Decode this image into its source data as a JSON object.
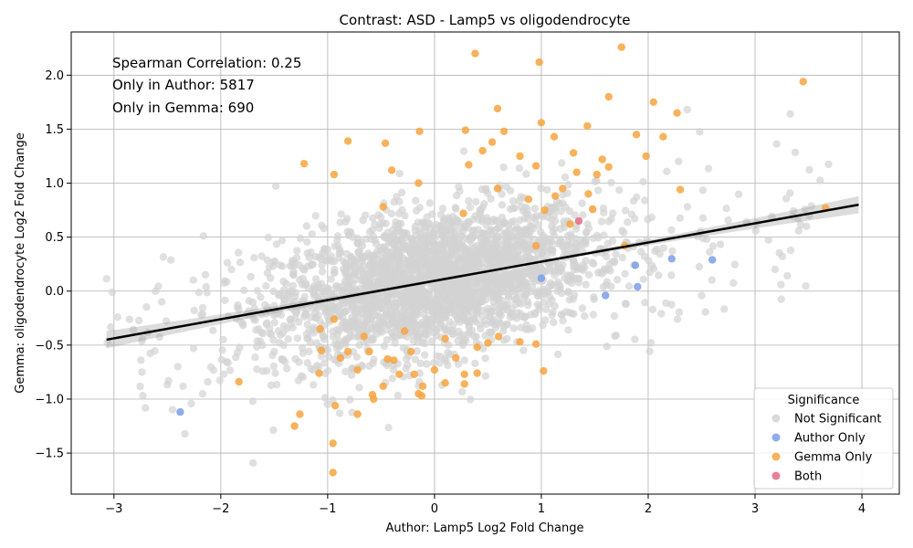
{
  "chart_data": {
    "type": "scatter",
    "title": "Contrast: ASD - Lamp5 vs oligodendrocyte",
    "xlabel": "Author: Lamp5 Log2 Fold Change",
    "ylabel": "Gemma: oligodendrocyte Log2 Fold Change",
    "xlim": [
      -3.4,
      4.35
    ],
    "ylim": [
      -1.88,
      2.4
    ],
    "x_ticks": [
      -3,
      -2,
      -1,
      0,
      1,
      2,
      3,
      4
    ],
    "x_tick_labels": [
      "−3",
      "−2",
      "−1",
      "0",
      "1",
      "2",
      "3",
      "4"
    ],
    "y_ticks": [
      -1.5,
      -1.0,
      -0.5,
      0.0,
      0.5,
      1.0,
      1.5,
      2.0
    ],
    "y_tick_labels": [
      "−1.5",
      "−1.0",
      "−0.5",
      "0.0",
      "0.5",
      "1.0",
      "1.5",
      "2.0"
    ],
    "grid": true,
    "annotations": [
      "Spearman Correlation: 0.25",
      "Only in Author: 5817",
      "Only in Gemma: 690"
    ],
    "legend": {
      "title": "Significance",
      "placement": "lower-right",
      "entries": [
        {
          "label": "Not Significant",
          "color": "#d3d3d3"
        },
        {
          "label": "Author Only",
          "color": "#7b9de8"
        },
        {
          "label": "Gemma Only",
          "color": "#f7a440"
        },
        {
          "label": "Both",
          "color": "#e36a82"
        }
      ]
    },
    "regression": {
      "x": [
        -3.07,
        3.97
      ],
      "y": [
        -0.45,
        0.8
      ],
      "color": "#000000"
    },
    "series": [
      {
        "name": "Author Only",
        "color": "#7b9de8",
        "points": [
          [
            -2.38,
            -1.12
          ],
          [
            1.6,
            -0.04
          ],
          [
            1.88,
            0.24
          ],
          [
            1.9,
            0.04
          ],
          [
            2.22,
            0.3
          ],
          [
            2.6,
            0.29
          ],
          [
            1.0,
            0.12
          ]
        ]
      },
      {
        "name": "Gemma Only",
        "color": "#f7a440",
        "points": [
          [
            0.38,
            2.2
          ],
          [
            0.98,
            2.12
          ],
          [
            1.75,
            2.26
          ],
          [
            3.45,
            1.94
          ],
          [
            1.63,
            1.8
          ],
          [
            2.05,
            1.75
          ],
          [
            0.59,
            1.69
          ],
          [
            2.27,
            1.65
          ],
          [
            1.0,
            1.56
          ],
          [
            1.43,
            1.53
          ],
          [
            0.29,
            1.49
          ],
          [
            0.65,
            1.48
          ],
          [
            -0.14,
            1.48
          ],
          [
            1.12,
            1.43
          ],
          [
            1.89,
            1.45
          ],
          [
            2.14,
            1.43
          ],
          [
            -0.81,
            1.39
          ],
          [
            -0.46,
            1.37
          ],
          [
            0.54,
            1.38
          ],
          [
            0.8,
            1.25
          ],
          [
            1.3,
            1.28
          ],
          [
            1.57,
            1.22
          ],
          [
            1.98,
            1.25
          ],
          [
            -1.22,
            1.18
          ],
          [
            -0.94,
            1.08
          ],
          [
            0.95,
            1.16
          ],
          [
            1.33,
            1.1
          ],
          [
            1.52,
            1.08
          ],
          [
            1.63,
            1.15
          ],
          [
            -0.4,
            1.12
          ],
          [
            0.32,
            1.17
          ],
          [
            0.45,
            1.3
          ],
          [
            -0.15,
            1.0
          ],
          [
            1.2,
            0.95
          ],
          [
            1.44,
            0.9
          ],
          [
            2.3,
            0.94
          ],
          [
            1.03,
            0.75
          ],
          [
            1.13,
            0.88
          ],
          [
            0.59,
            0.95
          ],
          [
            0.88,
            0.85
          ],
          [
            -0.48,
            0.78
          ],
          [
            1.48,
            0.76
          ],
          [
            3.66,
            0.77
          ],
          [
            1.78,
            0.42
          ],
          [
            0.95,
            0.42
          ],
          [
            1.27,
            0.62
          ],
          [
            0.27,
            0.72
          ],
          [
            -0.28,
            -0.37
          ],
          [
            -1.07,
            -0.35
          ],
          [
            -0.94,
            -0.26
          ],
          [
            -0.81,
            -0.56
          ],
          [
            -1.06,
            -0.55
          ],
          [
            -0.88,
            -0.62
          ],
          [
            -0.72,
            -0.73
          ],
          [
            -0.61,
            -0.56
          ],
          [
            -0.44,
            -0.63
          ],
          [
            -0.48,
            -0.88
          ],
          [
            -0.58,
            -0.96
          ],
          [
            -0.33,
            -0.77
          ],
          [
            -0.19,
            -0.77
          ],
          [
            -0.11,
            -0.88
          ],
          [
            -0.15,
            -0.95
          ],
          [
            0.0,
            -0.73
          ],
          [
            0.1,
            -0.85
          ],
          [
            0.28,
            -0.77
          ],
          [
            0.4,
            -0.76
          ],
          [
            0.28,
            -0.86
          ],
          [
            -1.08,
            -0.76
          ],
          [
            -1.83,
            -0.84
          ],
          [
            -1.26,
            -1.14
          ],
          [
            -0.93,
            -1.06
          ],
          [
            -0.72,
            -1.14
          ],
          [
            -1.31,
            -1.25
          ],
          [
            -0.95,
            -1.41
          ],
          [
            -0.95,
            -1.68
          ],
          [
            0.1,
            -0.44
          ],
          [
            0.6,
            -0.42
          ],
          [
            0.4,
            -0.52
          ],
          [
            0.8,
            -0.47
          ],
          [
            0.95,
            -0.49
          ],
          [
            1.02,
            -0.74
          ],
          [
            -0.12,
            -0.97
          ],
          [
            -0.57,
            -1.0
          ],
          [
            -0.38,
            -0.64
          ],
          [
            -0.22,
            -0.56
          ],
          [
            0.2,
            -0.62
          ],
          [
            0.5,
            -0.48
          ],
          [
            -0.66,
            -0.42
          ]
        ]
      },
      {
        "name": "Both",
        "color": "#e36a82",
        "points": [
          [
            1.35,
            0.65
          ]
        ]
      }
    ]
  }
}
